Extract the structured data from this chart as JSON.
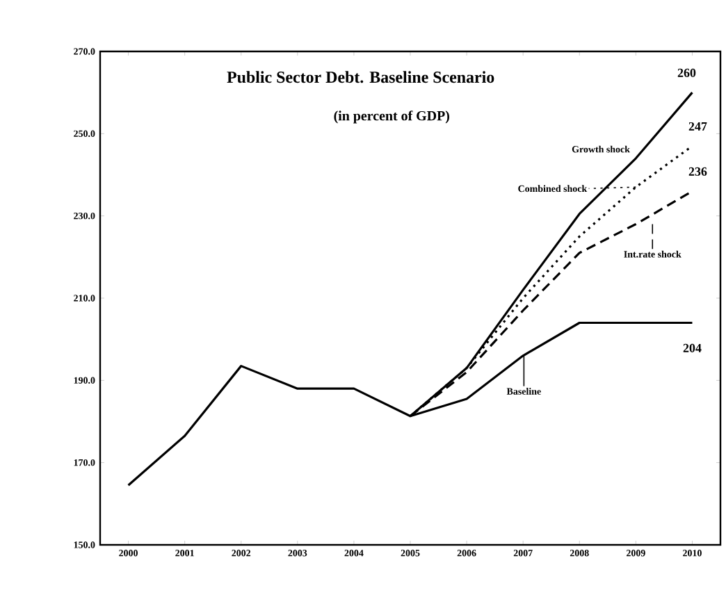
{
  "chart_data": {
    "type": "line",
    "title": "Public Sector Debt. Baseline Scenario",
    "subtitle": "(in percent of GDP)",
    "categories": [
      "2000",
      "2001",
      "2002",
      "2003",
      "2004",
      "2005",
      "2006",
      "2007",
      "2008",
      "2009",
      "2010"
    ],
    "ylim": [
      150,
      270
    ],
    "yticks": [
      {
        "value": 150,
        "label": "150.0"
      },
      {
        "value": 170,
        "label": "170.0"
      },
      {
        "value": 190,
        "label": "190.0"
      },
      {
        "value": 210,
        "label": "210.0"
      },
      {
        "value": 230,
        "label": "230.0"
      },
      {
        "value": 250,
        "label": "250.0"
      },
      {
        "value": 270,
        "label": "270.0"
      }
    ],
    "series": [
      {
        "name": "Baseline",
        "color": "#000000",
        "line_style": "solid",
        "values": [
          164.5,
          176.5,
          193.5,
          188,
          188,
          181.3,
          185.5,
          196,
          204,
          204,
          204
        ],
        "value_labels": [
          null,
          null,
          null,
          null,
          null,
          null,
          null,
          null,
          null,
          null,
          "204"
        ]
      },
      {
        "name": "Growth shock",
        "color": "#000000",
        "line_style": "solid",
        "values": [
          null,
          null,
          null,
          null,
          null,
          181.3,
          193,
          212,
          230.5,
          244,
          260
        ],
        "value_labels": [
          null,
          null,
          null,
          null,
          null,
          null,
          null,
          null,
          null,
          null,
          "260"
        ]
      },
      {
        "name": "Combined shock",
        "color": "#000000",
        "line_style": "dotted",
        "values": [
          null,
          null,
          null,
          null,
          null,
          181.3,
          193,
          210,
          225,
          237,
          247
        ],
        "value_labels": [
          null,
          null,
          null,
          null,
          null,
          null,
          null,
          null,
          null,
          null,
          "247"
        ]
      },
      {
        "name": "Int.rate shock",
        "color": "#000000",
        "line_style": "dashed",
        "values": [
          null,
          null,
          null,
          null,
          null,
          181.3,
          192,
          207,
          221,
          228,
          236
        ],
        "value_labels": [
          null,
          null,
          null,
          null,
          null,
          null,
          null,
          null,
          null,
          null,
          "236"
        ]
      }
    ]
  }
}
